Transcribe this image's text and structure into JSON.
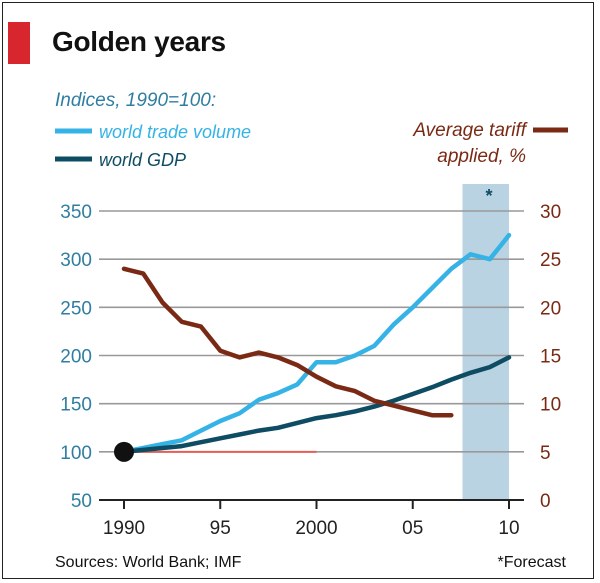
{
  "title": "Golden years",
  "colors": {
    "accent_red_tab": "#d7262e",
    "trade": "#35b3e6",
    "gdp": "#0e4c63",
    "tariff": "#7a2a14",
    "left_axis_text": "#2f7ea1",
    "right_axis_text": "#7a2a14",
    "forecast_band": "#b9d3e2",
    "baseline_red": "#e55e57",
    "grid": "#999999"
  },
  "legend": {
    "left_heading": "Indices, 1990=100:",
    "trade_label": "world trade volume",
    "gdp_label": "world GDP",
    "tariff_label_line1": "Average tariff",
    "tariff_label_line2": "applied, %"
  },
  "forecast_marker": "*",
  "sources": "Sources: World Bank; IMF",
  "forecast_note": "*Forecast",
  "chart_data": {
    "type": "line",
    "x_ticks": [
      {
        "value": 1990,
        "label": "1990"
      },
      {
        "value": 1995,
        "label": "95"
      },
      {
        "value": 2000,
        "label": "2000"
      },
      {
        "value": 2005,
        "label": "05"
      },
      {
        "value": 2010,
        "label": "10"
      }
    ],
    "xlim": [
      1990,
      2010
    ],
    "left_axis": {
      "ylim": [
        50,
        350
      ],
      "ticks": [
        {
          "value": 50,
          "label": "50"
        },
        {
          "value": 100,
          "label": "100"
        },
        {
          "value": 150,
          "label": "150"
        },
        {
          "value": 200,
          "label": "200"
        },
        {
          "value": 250,
          "label": "250"
        },
        {
          "value": 300,
          "label": "300"
        },
        {
          "value": 350,
          "label": "350"
        }
      ]
    },
    "right_axis": {
      "ylim": [
        0,
        30
      ],
      "ticks": [
        {
          "value": 0,
          "label": "0"
        },
        {
          "value": 5,
          "label": "5"
        },
        {
          "value": 10,
          "label": "10"
        },
        {
          "value": 15,
          "label": "15"
        },
        {
          "value": 20,
          "label": "20"
        },
        {
          "value": 25,
          "label": "25"
        },
        {
          "value": 30,
          "label": "30"
        }
      ]
    },
    "grid": true,
    "forecast_range": [
      2008,
      2010
    ],
    "series": [
      {
        "name": "world trade volume",
        "axis": "left",
        "x": [
          1990,
          1991,
          1992,
          1993,
          1994,
          1995,
          1996,
          1997,
          1998,
          1999,
          2000,
          2001,
          2002,
          2003,
          2004,
          2005,
          2006,
          2007,
          2008,
          2009,
          2010
        ],
        "values": [
          100,
          104,
          108,
          112,
          122,
          132,
          140,
          154,
          161,
          170,
          193,
          193,
          200,
          210,
          232,
          250,
          270,
          290,
          305,
          300,
          325
        ]
      },
      {
        "name": "world GDP",
        "axis": "left",
        "x": [
          1990,
          1991,
          1992,
          1993,
          1994,
          1995,
          1996,
          1997,
          1998,
          1999,
          2000,
          2001,
          2002,
          2003,
          2004,
          2005,
          2006,
          2007,
          2008,
          2009,
          2010
        ],
        "values": [
          100,
          102,
          104,
          106,
          110,
          114,
          118,
          122,
          125,
          130,
          135,
          138,
          142,
          147,
          153,
          160,
          167,
          175,
          182,
          188,
          198
        ]
      },
      {
        "name": "Average tariff applied, %",
        "axis": "right",
        "x": [
          1990,
          1991,
          1992,
          1993,
          1994,
          1995,
          1996,
          1997,
          1998,
          1999,
          2000,
          2001,
          2002,
          2003,
          2004,
          2005,
          2006,
          2007
        ],
        "values": [
          24.0,
          23.5,
          20.5,
          18.5,
          18.0,
          15.5,
          14.8,
          15.3,
          14.8,
          14.0,
          12.8,
          11.8,
          11.3,
          10.3,
          9.8,
          9.3,
          8.8,
          8.8
        ]
      }
    ],
    "baseline": {
      "value": 100,
      "axis": "left",
      "x_range": [
        1990,
        2000
      ]
    },
    "start_marker": {
      "x": 1990,
      "value": 100
    }
  }
}
